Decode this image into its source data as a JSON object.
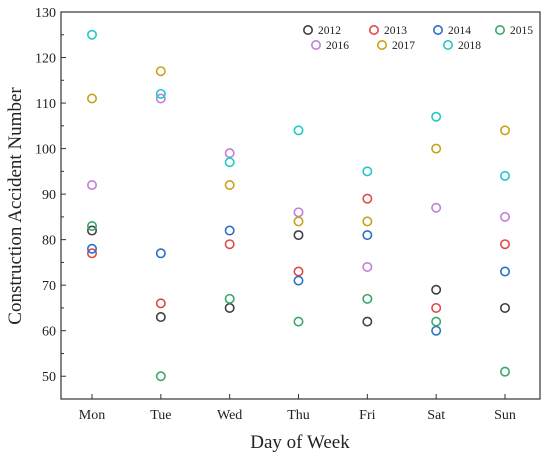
{
  "chart_data": {
    "type": "scatter",
    "xlabel": "Day of Week",
    "ylabel": "Construction Accident Number",
    "categories": [
      "Mon",
      "Tue",
      "Wed",
      "Thu",
      "Fri",
      "Sat",
      "Sun"
    ],
    "ylim": [
      45,
      130
    ],
    "yticks": [
      50,
      60,
      70,
      80,
      90,
      100,
      110,
      120,
      130
    ],
    "grid": false,
    "legend_position": "top-right",
    "series": [
      {
        "name": "2012",
        "color": "#404040",
        "values": [
          82,
          63,
          65,
          81,
          62,
          69,
          65
        ]
      },
      {
        "name": "2013",
        "color": "#e04848",
        "values": [
          77,
          66,
          79,
          73,
          89,
          65,
          79
        ]
      },
      {
        "name": "2014",
        "color": "#2a6fc9",
        "values": [
          78,
          77,
          82,
          71,
          81,
          60,
          73
        ]
      },
      {
        "name": "2015",
        "color": "#3aa66c",
        "values": [
          83,
          50,
          67,
          62,
          67,
          62,
          51
        ]
      },
      {
        "name": "2016",
        "color": "#c080d8",
        "values": [
          92,
          111,
          99,
          86,
          74,
          87,
          85
        ]
      },
      {
        "name": "2017",
        "color": "#c9a21c",
        "values": [
          111,
          117,
          92,
          84,
          84,
          100,
          104
        ]
      },
      {
        "name": "2018",
        "color": "#22c8c8",
        "values": [
          125,
          112,
          97,
          104,
          95,
          107,
          94
        ]
      }
    ]
  }
}
